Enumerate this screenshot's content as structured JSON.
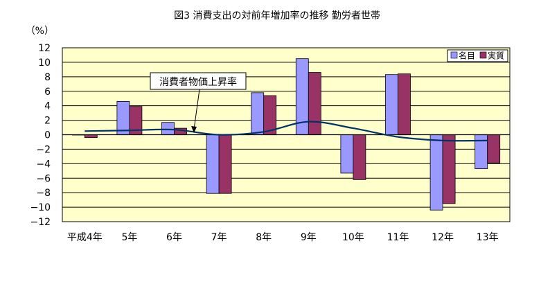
{
  "chart_data": {
    "type": "bar",
    "title": "図3 消費支出の対前年増加率の推移 勤労者世帯",
    "ylabel": "（%）",
    "xlabel": "",
    "ylim": [
      -12,
      12
    ],
    "ytick_step": 2,
    "grid": true,
    "legend_position": "top-right",
    "categories": [
      "平成4年",
      "5年",
      "6年",
      "7年",
      "8年",
      "9年",
      "10年",
      "11年",
      "12年",
      "13年"
    ],
    "series": [
      {
        "name": "名目",
        "type": "bar",
        "color": "#9999ff",
        "values": [
          0.0,
          4.6,
          1.7,
          -8.1,
          5.8,
          10.5,
          -5.3,
          8.3,
          -10.4,
          -4.7
        ]
      },
      {
        "name": "実質",
        "type": "bar",
        "color": "#993366",
        "values": [
          -0.4,
          3.9,
          0.9,
          -8.1,
          5.4,
          8.6,
          -6.2,
          8.4,
          -9.5,
          -3.9
        ]
      },
      {
        "name": "消費者物価上昇率",
        "type": "line",
        "color": "#003366",
        "values": [
          0.5,
          0.6,
          0.7,
          0.0,
          0.4,
          1.8,
          0.9,
          -0.3,
          -0.8,
          -0.8
        ]
      }
    ],
    "annotations": [
      {
        "text": "消費者物価上昇率"
      }
    ]
  }
}
